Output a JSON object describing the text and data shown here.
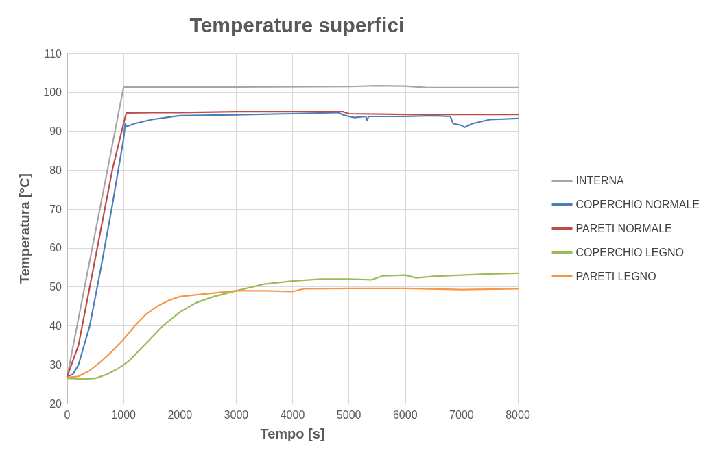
{
  "chart_data": {
    "type": "line",
    "title": "Temperature superfici",
    "xlabel": "Tempo [s]",
    "ylabel": "Temperatura [°C]",
    "xlim": [
      0,
      8000
    ],
    "xticks": [
      0,
      1000,
      2000,
      3000,
      4000,
      5000,
      6000,
      7000,
      8000
    ],
    "ylim": [
      20,
      110
    ],
    "yticks": [
      20,
      30,
      40,
      50,
      60,
      70,
      80,
      90,
      100,
      110
    ],
    "grid": true,
    "legend": "right",
    "marker": "none",
    "line_style": "solid",
    "series": [
      {
        "name": "INTERNA",
        "color": "#a5a5a5",
        "x": [
          0,
          1000,
          1050,
          3000,
          5000,
          5500,
          6000,
          6400,
          8000
        ],
        "values": [
          27,
          101.3,
          101.4,
          101.4,
          101.5,
          101.7,
          101.6,
          101.2,
          101.2
        ]
      },
      {
        "name": "COPERCHIO NORMALE",
        "color": "#4a7ebb",
        "x": [
          0,
          100,
          200,
          400,
          600,
          800,
          1000,
          1030,
          1050,
          1200,
          1500,
          2000,
          3000,
          4000,
          4800,
          4900,
          5000,
          5100,
          5300,
          5320,
          5350,
          6000,
          6500,
          6800,
          6850,
          7000,
          7050,
          7200,
          7500,
          8000
        ],
        "values": [
          27,
          27.5,
          30,
          40,
          55,
          71,
          88,
          92,
          91.2,
          92,
          93,
          94,
          94.2,
          94.5,
          94.8,
          94.2,
          93.8,
          93.5,
          93.8,
          92.8,
          93.8,
          93.8,
          94,
          93.8,
          92,
          91.5,
          91,
          92,
          93,
          93.3
        ]
      },
      {
        "name": "PARETI NORMALE",
        "color": "#be4b48",
        "x": [
          0,
          200,
          400,
          600,
          800,
          1000,
          1050,
          1500,
          2000,
          3000,
          4000,
          4900,
          5000,
          6000,
          8000
        ],
        "values": [
          27,
          35,
          50,
          65,
          80,
          92,
          94.7,
          94.8,
          94.8,
          95,
          95,
          95,
          94.5,
          94.3,
          94.3
        ]
      },
      {
        "name": "COPERCHIO LEGNO",
        "color": "#9bbb59",
        "x": [
          0,
          300,
          500,
          700,
          900,
          1100,
          1300,
          1500,
          1700,
          2000,
          2300,
          2600,
          3000,
          3500,
          4000,
          4500,
          5000,
          5400,
          5600,
          6000,
          6200,
          6500,
          7000,
          7500,
          8000
        ],
        "values": [
          26.5,
          26.3,
          26.5,
          27.5,
          29,
          31,
          34,
          37,
          40,
          43.5,
          46,
          47.5,
          49,
          50.7,
          51.5,
          52,
          52,
          51.8,
          52.8,
          53,
          52.3,
          52.7,
          53,
          53.3,
          53.5
        ]
      },
      {
        "name": "PARETI LEGNO",
        "color": "#f79646",
        "x": [
          0,
          200,
          400,
          600,
          800,
          1000,
          1200,
          1400,
          1600,
          1800,
          2000,
          2500,
          3000,
          3500,
          4000,
          4200,
          5000,
          6000,
          7000,
          8000
        ],
        "values": [
          26.7,
          27,
          28.5,
          30.8,
          33.5,
          36.5,
          40,
          43,
          45,
          46.5,
          47.5,
          48.3,
          49,
          49,
          48.8,
          49.5,
          49.6,
          49.6,
          49.3,
          49.5
        ]
      }
    ]
  }
}
